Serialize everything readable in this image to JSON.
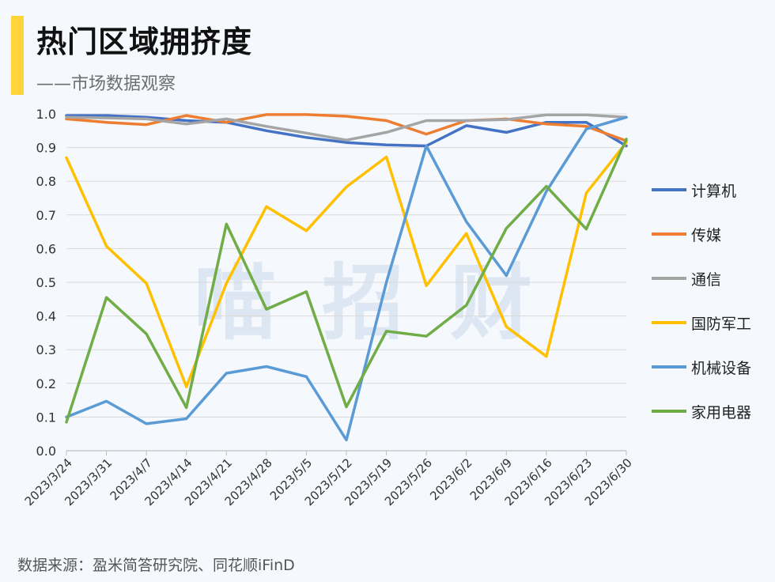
{
  "header": {
    "title": "热门区域拥挤度",
    "subtitle": "——市场数据观察"
  },
  "watermark": "喵招财",
  "source": "数据来源：盈米简答研究院、同花顺iFinD",
  "colors": {
    "accent": "#ffd43b",
    "grid": "#d9d9d9"
  },
  "chart_data": {
    "type": "line",
    "title": "",
    "xlabel": "",
    "ylabel": "",
    "ylim": [
      0,
      1.0
    ],
    "yticks": [
      "0.0",
      "0.1",
      "0.2",
      "0.3",
      "0.4",
      "0.5",
      "0.6",
      "0.7",
      "0.8",
      "0.9",
      "1.0"
    ],
    "grid": true,
    "legend_position": "right",
    "categories": [
      "2023/3/24",
      "2023/3/31",
      "2023/4/7",
      "2023/4/14",
      "2023/4/21",
      "2023/4/28",
      "2023/5/5",
      "2023/5/12",
      "2023/5/19",
      "2023/5/26",
      "2023/6/2",
      "2023/6/9",
      "2023/6/16",
      "2023/6/23",
      "2023/6/30"
    ],
    "series": [
      {
        "name": "计算机",
        "color": "#4472c4",
        "values": [
          0.995,
          0.995,
          0.99,
          0.98,
          0.975,
          0.95,
          0.93,
          0.915,
          0.908,
          0.905,
          0.965,
          0.945,
          0.975,
          0.975,
          0.905
        ]
      },
      {
        "name": "传媒",
        "color": "#ed7d31",
        "values": [
          0.985,
          0.975,
          0.968,
          0.995,
          0.975,
          0.998,
          0.998,
          0.993,
          0.98,
          0.94,
          0.98,
          0.985,
          0.97,
          0.963,
          0.92
        ]
      },
      {
        "name": "通信",
        "color": "#a5a5a5",
        "values": [
          0.99,
          0.988,
          0.985,
          0.97,
          0.985,
          0.963,
          0.943,
          0.922,
          0.945,
          0.98,
          0.98,
          0.983,
          0.997,
          0.997,
          0.99
        ]
      },
      {
        "name": "国防军工",
        "color": "#ffc000",
        "values": [
          0.87,
          0.607,
          0.497,
          0.19,
          0.497,
          0.725,
          0.653,
          0.783,
          0.872,
          0.49,
          0.645,
          0.368,
          0.28,
          0.765,
          0.915
        ]
      },
      {
        "name": "机械设备",
        "color": "#5b9bd5",
        "values": [
          0.1,
          0.147,
          0.08,
          0.095,
          0.23,
          0.25,
          0.22,
          0.032,
          0.5,
          0.905,
          0.68,
          0.52,
          0.77,
          0.955,
          0.99
        ]
      },
      {
        "name": "家用电器",
        "color": "#70ad47",
        "values": [
          0.085,
          0.455,
          0.347,
          0.128,
          0.673,
          0.42,
          0.472,
          0.13,
          0.355,
          0.34,
          0.432,
          0.66,
          0.785,
          0.658,
          0.925
        ]
      }
    ]
  }
}
